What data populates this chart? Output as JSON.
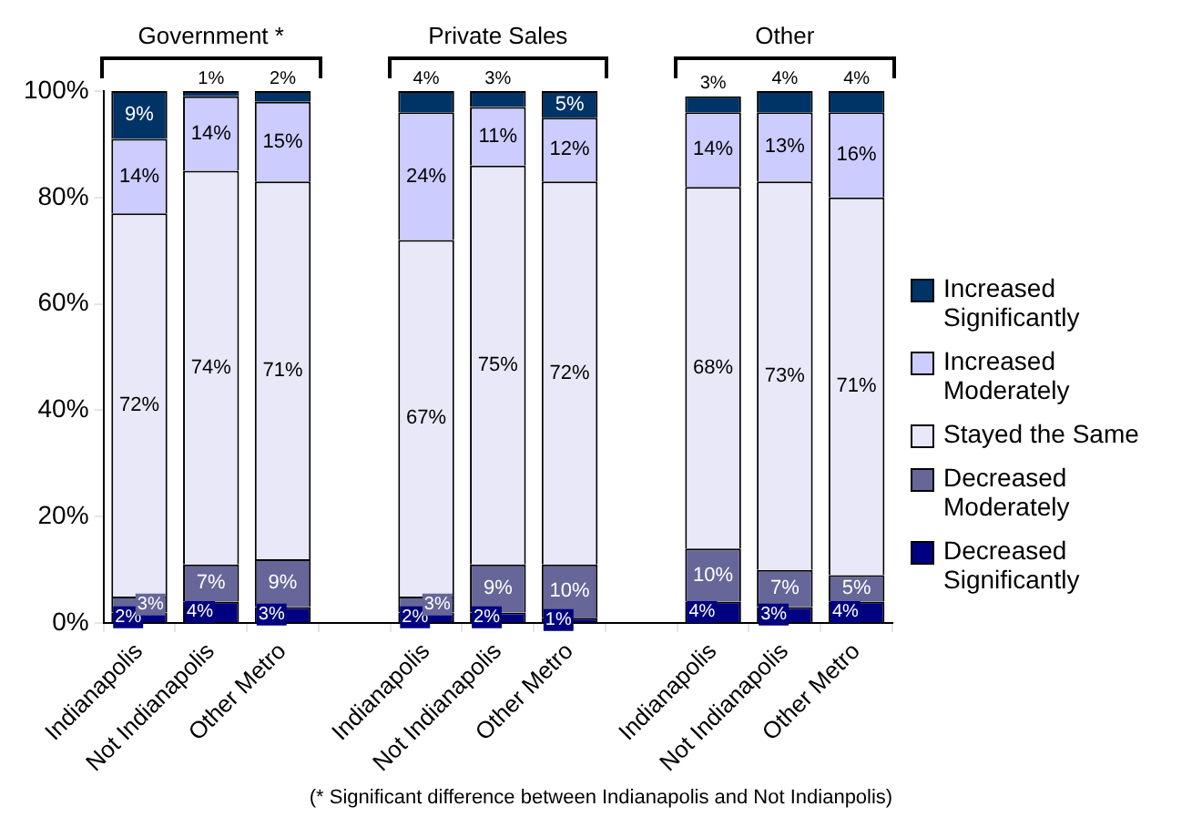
{
  "chart_data": {
    "type": "bar",
    "stacked": true,
    "grid": false,
    "legend": "right",
    "categories": [
      "Indianapolis",
      "Not Indianapolis",
      "Other Metro",
      null,
      "Indianapolis",
      "Not Indianapolis",
      "Other Metro",
      null,
      "Indianapolis",
      "Not Indianapolis",
      "Other Metro"
    ],
    "ylim": [
      0,
      100
    ],
    "yticks": [
      {
        "value": 0,
        "label": "0%"
      },
      {
        "value": 20,
        "label": "20%"
      },
      {
        "value": 40,
        "label": "40%"
      },
      {
        "value": 60,
        "label": "60%"
      },
      {
        "value": 80,
        "label": "80%"
      },
      {
        "value": 100,
        "label": "100%"
      }
    ],
    "series": [
      {
        "name": "Decreased Significantly",
        "color": "#000080",
        "values": [
          2,
          4,
          3,
          null,
          2,
          2,
          1,
          null,
          4,
          3,
          4
        ],
        "value_labels": [
          "2%",
          "4%",
          "3%",
          null,
          "2%",
          "2%",
          "1%",
          null,
          "4%",
          "3%",
          "4%"
        ]
      },
      {
        "name": "Decreased Moderately",
        "color": "#666699",
        "values": [
          3,
          7,
          9,
          null,
          3,
          9,
          10,
          null,
          10,
          7,
          5
        ],
        "value_labels": [
          "3%",
          "7%",
          "9%",
          null,
          "3%",
          "9%",
          "10%",
          null,
          "10%",
          "7%",
          "5%"
        ]
      },
      {
        "name": "Stayed the Same",
        "color": "#e8e8f8",
        "values": [
          72,
          74,
          71,
          null,
          67,
          75,
          72,
          null,
          68,
          73,
          71
        ],
        "value_labels": [
          "72%",
          "74%",
          "71%",
          null,
          "67%",
          "75%",
          "72%",
          null,
          "68%",
          "73%",
          "71%"
        ]
      },
      {
        "name": "Increased Moderately",
        "color": "#ccccff",
        "values": [
          14,
          14,
          15,
          null,
          24,
          11,
          12,
          null,
          14,
          13,
          16
        ],
        "value_labels": [
          "14%",
          "14%",
          "15%",
          null,
          "24%",
          "11%",
          "12%",
          null,
          "14%",
          "13%",
          "16%"
        ]
      },
      {
        "name": "Increased Significantly",
        "color": "#003366",
        "values": [
          9,
          1,
          2,
          null,
          4,
          3,
          5,
          null,
          3,
          4,
          4
        ],
        "value_labels": [
          "9%",
          "1%",
          "2%",
          null,
          "4%",
          "3%",
          "5%",
          null,
          "3%",
          "4%",
          "4%"
        ]
      }
    ],
    "annotations": [
      "Government *",
      "Private Sales",
      "Other",
      "(* Significant difference between Indianapolis and Not Indianpolis)"
    ]
  }
}
